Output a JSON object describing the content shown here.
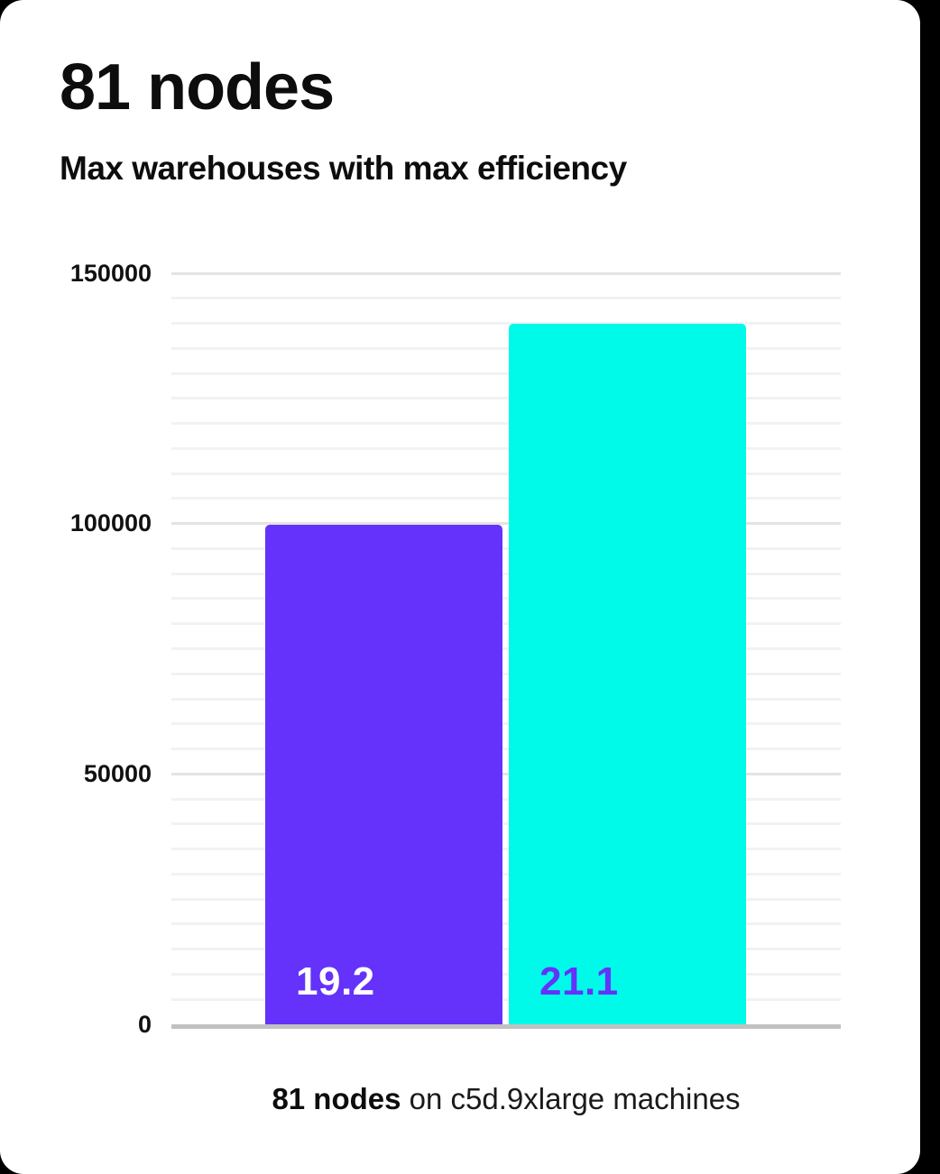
{
  "page": {
    "background_color": "#000000",
    "card_color": "#ffffff"
  },
  "header": {
    "title": "81 nodes",
    "subtitle": "Max warehouses with max efficiency"
  },
  "chart_data": {
    "type": "bar",
    "title": "81 nodes",
    "subtitle": "Max warehouses with max efficiency",
    "categories": [
      "19.2",
      "21.1"
    ],
    "values": [
      99800,
      140000
    ],
    "bar_labels": [
      "19.2",
      "21.1"
    ],
    "bar_colors": [
      "#6432FA",
      "#00FAE9"
    ],
    "bar_label_colors": [
      "#FFFFFF",
      "#6432FA"
    ],
    "ylim": [
      0,
      150000
    ],
    "yticks": [
      0,
      50000,
      100000,
      150000
    ],
    "ytick_labels": [
      "0",
      "50000",
      "100000",
      "150000"
    ],
    "minor_grid_step": 5000,
    "major_grid_step": 50000,
    "grid": true,
    "legend": false,
    "xlabel": "",
    "ylabel": "",
    "grid_minor_color": "#F2F2F2",
    "grid_major_color": "#E4E4E4",
    "axis_color": "#C1C1C1"
  },
  "caption": {
    "bold": "81 nodes",
    "rest": " on c5d.9xlarge machines"
  }
}
